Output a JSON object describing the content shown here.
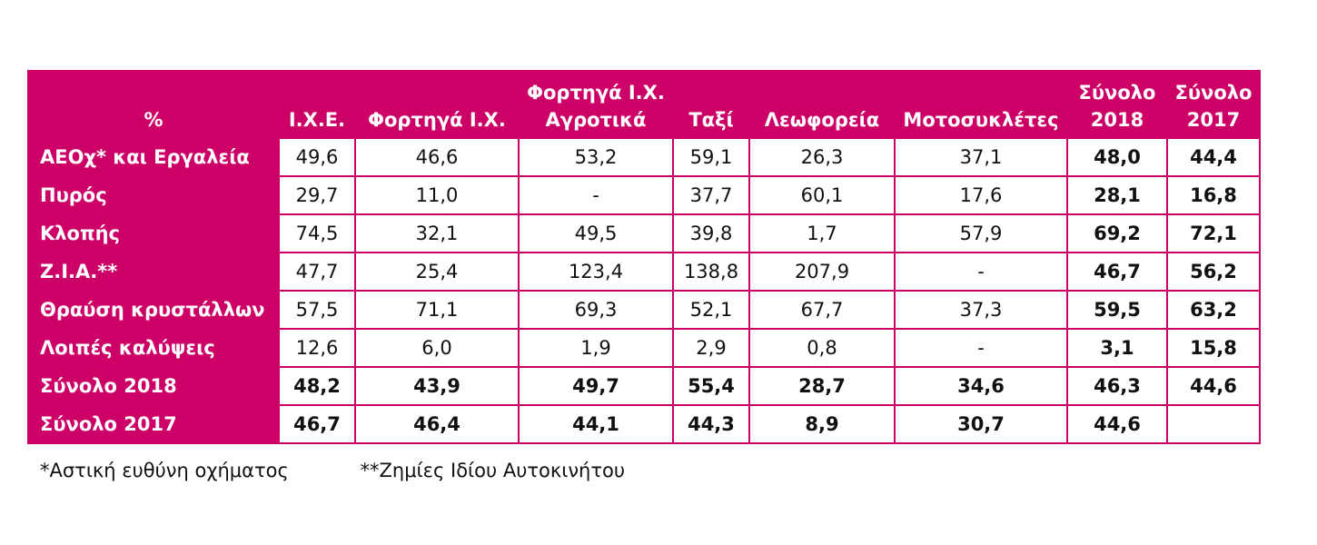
{
  "table": {
    "headers": [
      [
        "%"
      ],
      [
        "Ι.Χ.Ε."
      ],
      [
        "Φορτηγά Ι.Χ."
      ],
      [
        "Φορτηγά Ι.Χ.",
        "Αγροτικά"
      ],
      [
        "Ταξί"
      ],
      [
        "Λεωφορεία"
      ],
      [
        "Μοτοσυκλέτες"
      ],
      [
        "Σύνολο",
        "2018"
      ],
      [
        "Σύνολο",
        "2017"
      ]
    ],
    "rows": [
      [
        "ΑΕΟχ* και Εργαλεία",
        "49,6",
        "46,6",
        "53,2",
        "59,1",
        "26,3",
        "37,1",
        "48,0",
        "44,4"
      ],
      [
        "Πυρός",
        "29,7",
        "11,0",
        "-",
        "37,7",
        "60,1",
        "17,6",
        "28,1",
        "16,8"
      ],
      [
        "Κλοπής",
        "74,5",
        "32,1",
        "49,5",
        "39,8",
        "1,7",
        "57,9",
        "69,2",
        "72,1"
      ],
      [
        "Ζ.Ι.Α.**",
        "47,7",
        "25,4",
        "123,4",
        "138,8",
        "207,9",
        "-",
        "46,7",
        "56,2"
      ],
      [
        "Θραύση κρυστάλλων",
        "57,5",
        "71,1",
        "69,3",
        "52,1",
        "67,7",
        "37,3",
        "59,5",
        "63,2"
      ],
      [
        "Λοιπές καλύψεις",
        "12,6",
        "6,0",
        "1,9",
        "2,9",
        "0,8",
        "-",
        "3,1",
        "15,8"
      ],
      [
        "Σύνολο 2018",
        "48,2",
        "43,9",
        "49,7",
        "55,4",
        "28,7",
        "34,6",
        "46,3",
        "44,6"
      ],
      [
        "Σύνολο 2017",
        "46,7",
        "46,4",
        "44,1",
        "44,3",
        "8,9",
        "30,7",
        "44,6",
        ""
      ]
    ]
  },
  "footnotes": {
    "note1": "*Αστική ευθύνη οχήματος",
    "note2": "**Ζημίες Ιδίου Αυτοκινήτου"
  },
  "colors": {
    "header_bg": "#cc0066",
    "header_text": "#ffffff",
    "border": "#cc0066"
  }
}
